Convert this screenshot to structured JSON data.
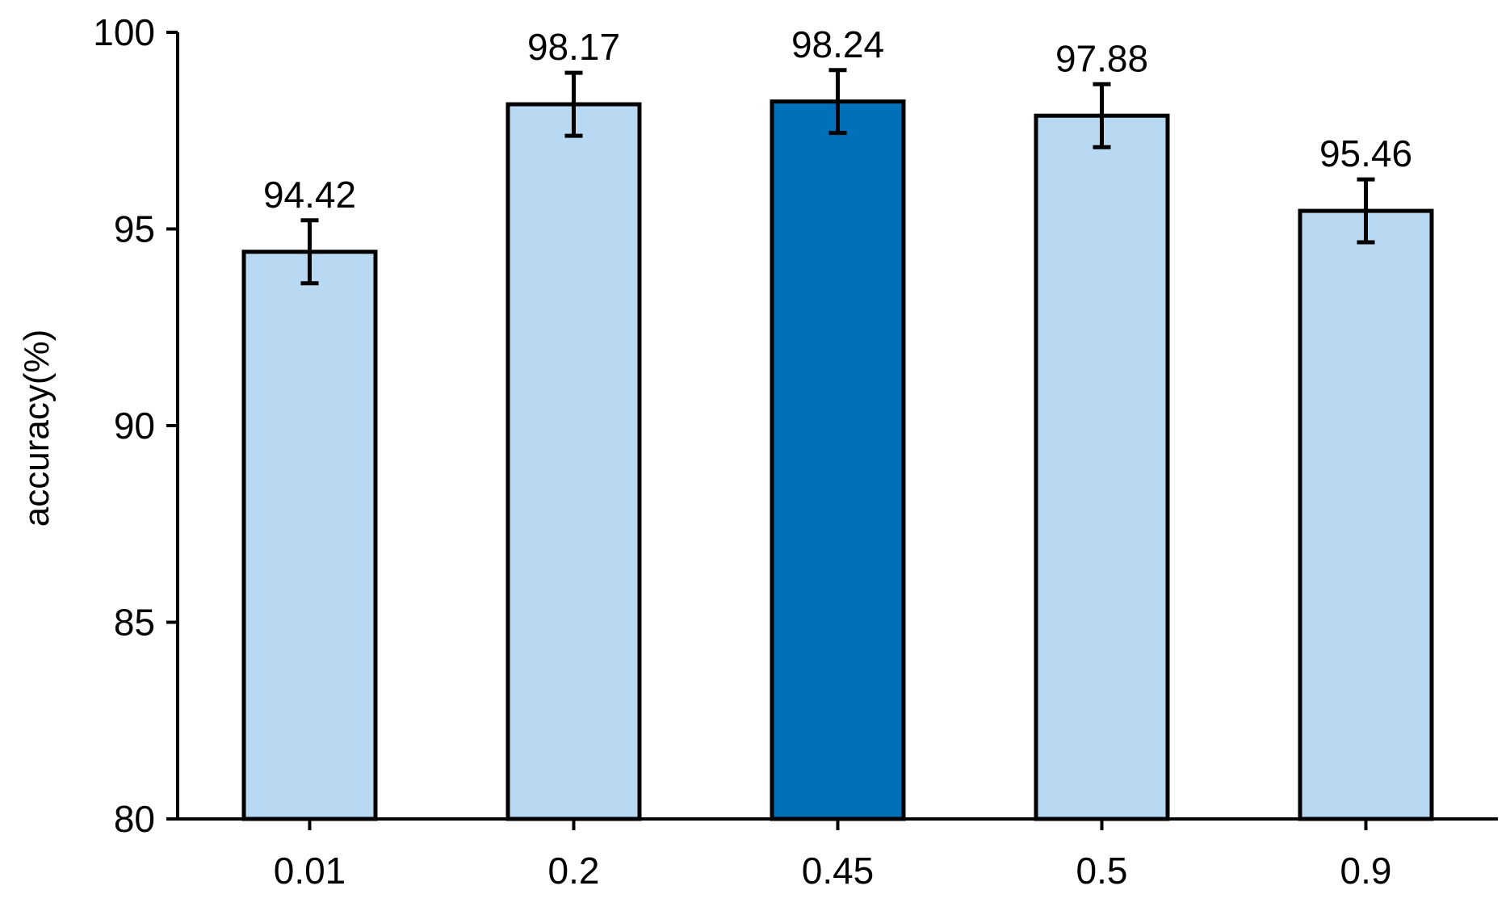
{
  "chart_data": {
    "type": "bar",
    "title": "",
    "xlabel": "",
    "ylabel": "accuracy(%)",
    "categories": [
      "0.01",
      "0.2",
      "0.45",
      "0.5",
      "0.9"
    ],
    "values": [
      94.42,
      98.17,
      98.24,
      97.88,
      95.46
    ],
    "value_labels": [
      "94.42",
      "98.17",
      "98.24",
      "97.88",
      "95.46"
    ],
    "error_bars": [
      0.8,
      0.8,
      0.8,
      0.8,
      0.8
    ],
    "highlight_index": 2,
    "ylim": [
      80,
      100
    ],
    "yticks": [
      80,
      85,
      90,
      95,
      100
    ],
    "ytick_labels": [
      "80",
      "85",
      "90",
      "95",
      "100"
    ],
    "grid": false,
    "legend": "none",
    "colors": {
      "bar": "#b8d9f1",
      "highlight": "#0070b8",
      "stroke": "#000000",
      "axis": "#000000"
    }
  }
}
